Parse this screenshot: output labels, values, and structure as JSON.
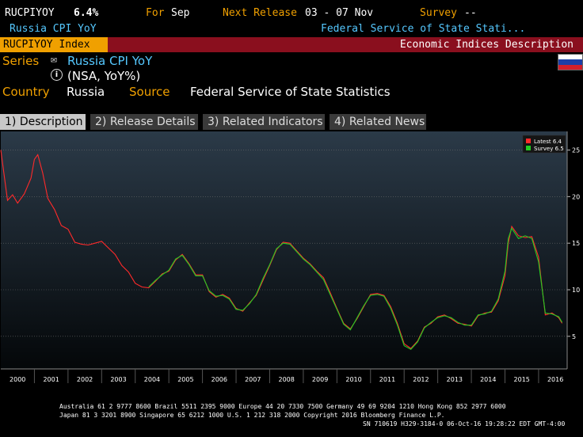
{
  "header": {
    "ticker": "RUCPIYOY",
    "value": "6.4%",
    "for_label": "For",
    "for_value": "Sep",
    "next_release_label": "Next Release",
    "next_release_value": "03 - 07 Nov",
    "survey_label": "Survey",
    "survey_value": "--",
    "subtitle": "Russia CPI YoY",
    "source_short": "Federal Service of State Stati..."
  },
  "bar": {
    "security": "RUCPIYOY Index",
    "function": "Economic Indices Description"
  },
  "meta": {
    "series_label": "Series",
    "series_name": "Russia CPI YoY",
    "series_note": "(NSA, YoY%)",
    "country_label": "Country",
    "country_value": "Russia",
    "source_label": "Source",
    "source_value": "Federal Service of State Statistics"
  },
  "flag_colors": [
    "#ffffff",
    "#1c3fa8",
    "#d21f2b"
  ],
  "tabs": [
    {
      "label": "1) Description",
      "active": true
    },
    {
      "label": "2) Release Details",
      "active": false
    },
    {
      "label": "3) Related Indicators",
      "active": false
    },
    {
      "label": "4) Related News",
      "active": false
    }
  ],
  "chart_data": {
    "type": "line",
    "ylim": [
      1.5,
      27
    ],
    "yticks": [
      5,
      10,
      15,
      20,
      25
    ],
    "xlim": [
      2000,
      2016.85
    ],
    "xticks": [
      "2000",
      "2001",
      "2002",
      "2003",
      "2004",
      "2005",
      "2006",
      "2007",
      "2008",
      "2009",
      "2010",
      "2011",
      "2012",
      "2013",
      "2014",
      "2015",
      "2016"
    ],
    "legend": [
      {
        "name": "Latest 6.4",
        "color": "#ff2a2a"
      },
      {
        "name": "Survey 6.5",
        "color": "#22cc22"
      }
    ],
    "grid": true,
    "series": [
      {
        "name": "Latest",
        "color": "#ff2a2a",
        "x": [
          2000.0,
          2000.2,
          2000.35,
          2000.5,
          2000.7,
          2000.9,
          2001.0,
          2001.1,
          2001.25,
          2001.4,
          2001.6,
          2001.8,
          2002.0,
          2002.2,
          2002.4,
          2002.6,
          2002.8,
          2003.0,
          2003.2,
          2003.4,
          2003.6,
          2003.8,
          2004.0,
          2004.2,
          2004.4,
          2004.6,
          2004.8,
          2005.0,
          2005.2,
          2005.4,
          2005.6,
          2005.8,
          2006.0,
          2006.2,
          2006.4,
          2006.6,
          2006.8,
          2007.0,
          2007.2,
          2007.4,
          2007.6,
          2007.8,
          2008.0,
          2008.2,
          2008.4,
          2008.6,
          2008.8,
          2009.0,
          2009.2,
          2009.4,
          2009.6,
          2009.8,
          2010.0,
          2010.2,
          2010.4,
          2010.6,
          2010.8,
          2011.0,
          2011.2,
          2011.4,
          2011.6,
          2011.8,
          2012.0,
          2012.2,
          2012.4,
          2012.6,
          2012.8,
          2013.0,
          2013.2,
          2013.4,
          2013.6,
          2013.8,
          2014.0,
          2014.2,
          2014.4,
          2014.6,
          2014.8,
          2015.0,
          2015.1,
          2015.2,
          2015.4,
          2015.6,
          2015.8,
          2016.0,
          2016.2,
          2016.4,
          2016.6,
          2016.7
        ],
        "values": [
          25.0,
          19.6,
          20.2,
          19.3,
          20.3,
          22.0,
          24.0,
          24.5,
          22.5,
          19.8,
          18.6,
          16.9,
          16.5,
          15.1,
          14.9,
          14.8,
          15.0,
          15.2,
          14.5,
          13.8,
          12.6,
          11.9,
          10.7,
          10.3,
          10.2,
          10.9,
          11.7,
          12.0,
          13.2,
          13.8,
          12.8,
          11.6,
          11.6,
          9.8,
          9.2,
          9.5,
          9.1,
          8.0,
          7.7,
          8.6,
          9.4,
          11.0,
          12.6,
          14.3,
          15.1,
          15.0,
          14.2,
          13.4,
          12.8,
          12.0,
          11.3,
          9.7,
          8.0,
          6.4,
          5.8,
          6.9,
          8.2,
          9.5,
          9.6,
          9.4,
          8.2,
          6.4,
          4.2,
          3.7,
          4.5,
          6.0,
          6.4,
          7.1,
          7.3,
          6.9,
          6.4,
          6.3,
          6.1,
          7.2,
          7.5,
          7.6,
          8.8,
          11.5,
          15.0,
          16.8,
          15.8,
          15.6,
          15.7,
          13.5,
          7.3,
          7.5,
          7.0,
          6.4
        ]
      },
      {
        "name": "Survey",
        "color": "#22cc22",
        "x": [
          2004.4,
          2004.6,
          2004.8,
          2005.0,
          2005.2,
          2005.4,
          2005.6,
          2005.8,
          2006.0,
          2006.2,
          2006.4,
          2006.6,
          2006.8,
          2007.0,
          2007.2,
          2007.4,
          2007.6,
          2007.8,
          2008.0,
          2008.2,
          2008.4,
          2008.6,
          2008.8,
          2009.0,
          2009.2,
          2009.4,
          2009.6,
          2009.8,
          2010.0,
          2010.2,
          2010.4,
          2010.6,
          2010.8,
          2011.0,
          2011.2,
          2011.4,
          2011.6,
          2011.8,
          2012.0,
          2012.2,
          2012.4,
          2012.6,
          2012.8,
          2013.0,
          2013.2,
          2013.4,
          2013.6,
          2013.8,
          2014.0,
          2014.2,
          2014.4,
          2014.6,
          2014.8,
          2015.0,
          2015.1,
          2015.2,
          2015.4,
          2015.6,
          2015.8,
          2016.0,
          2016.2,
          2016.4,
          2016.6,
          2016.7
        ],
        "values": [
          10.3,
          11.0,
          11.6,
          12.1,
          13.3,
          13.7,
          12.7,
          11.5,
          11.5,
          9.9,
          9.3,
          9.4,
          9.0,
          7.9,
          7.8,
          8.5,
          9.5,
          11.2,
          12.7,
          14.4,
          15.0,
          14.9,
          14.1,
          13.3,
          12.7,
          11.9,
          11.1,
          9.5,
          7.9,
          6.3,
          5.7,
          7.0,
          8.3,
          9.4,
          9.5,
          9.3,
          8.0,
          6.2,
          4.0,
          3.6,
          4.4,
          5.9,
          6.5,
          7.0,
          7.2,
          7.0,
          6.5,
          6.2,
          6.2,
          7.3,
          7.4,
          7.7,
          9.0,
          12.0,
          15.5,
          16.6,
          15.5,
          15.8,
          15.5,
          13.0,
          7.5,
          7.4,
          7.1,
          6.5
        ]
      }
    ]
  },
  "footer": {
    "line1": "Australia 61 2 9777 8600 Brazil 5511 2395 9000 Europe 44 20 7330 7500 Germany 49 69 9204 1210 Hong Kong 852 2977 6000",
    "line2": "Japan 81 3 3201 8900        Singapore 65 6212 1000        U.S. 1 212 318 2000        Copyright 2016 Bloomberg Finance L.P.",
    "line3": "SN 710619 H329-3184-0 06-Oct-16 19:28:22 EDT  GMT-4:00"
  }
}
